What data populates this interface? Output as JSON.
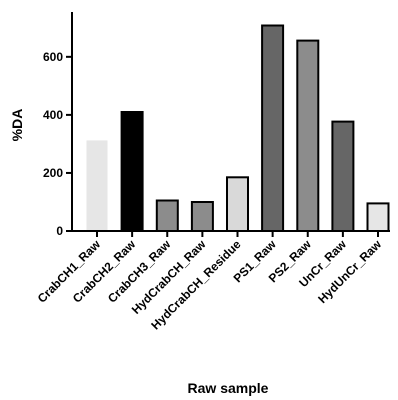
{
  "chart_data": {
    "type": "bar",
    "title": "",
    "xlabel": "Raw sample",
    "ylabel": "%DA",
    "ylim": [
      0,
      720
    ],
    "yticks": [
      0,
      200,
      400,
      600
    ],
    "grid": false,
    "legend": "none",
    "categories": [
      "CrabCH1_Raw",
      "CrabCH2_Raw",
      "CrabCH3_Raw",
      "HydCrabCH_Raw",
      "HydCrabCH_Residue",
      "PS1_Raw",
      "PS2_Raw",
      "UnCr_Raw",
      "HydUnCr_Raw"
    ],
    "values": [
      312,
      410,
      105,
      100,
      185,
      708,
      656,
      377,
      95
    ],
    "bar_colors": [
      "#e6e6e6",
      "#000000",
      "#8c8c8c",
      "#8c8c8c",
      "#d9d9d9",
      "#666666",
      "#8c8c8c",
      "#666666",
      "#e6e6e6"
    ],
    "bar_outlined": [
      false,
      true,
      true,
      true,
      true,
      true,
      true,
      true,
      true
    ]
  }
}
